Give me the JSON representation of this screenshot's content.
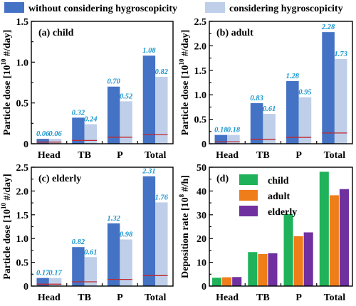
{
  "colors": {
    "without": "#4472c4",
    "with": "#bfcfea",
    "redline": "#c0282d",
    "value_label": "#1a96cf",
    "child": "#1fb25a",
    "adult": "#ef7d1a",
    "elderly": "#7030a0"
  },
  "legend": {
    "without": "without considering hygroscopicity",
    "with": "considering hygroscopicity"
  },
  "chart_data": [
    {
      "type": "bar",
      "panel": "(a) child",
      "ylabel": "Particle dose [10¹⁰ #/day]",
      "ylabel_base": "Particle dose [10",
      "ylabel_exp": "10",
      "ylabel_tail": " #/day]",
      "categories": [
        "Head",
        "TB",
        "P",
        "Total"
      ],
      "ylim": [
        0,
        1.5
      ],
      "yticks": [
        0,
        0.5,
        1.0,
        1.5
      ],
      "ytick_labels": [
        "0",
        "0.5",
        "1.0",
        "1.5"
      ],
      "series": [
        {
          "name": "without considering hygroscopicity",
          "values": [
            0.06,
            0.32,
            0.7,
            1.08
          ]
        },
        {
          "name": "considering hygroscopicity",
          "values": [
            0.06,
            0.24,
            0.52,
            0.82
          ]
        }
      ],
      "value_labels": [
        [
          "0.06",
          "0.32",
          "0.70",
          "1.08"
        ],
        [
          "0.06",
          "0.24",
          "0.52",
          "0.82"
        ]
      ],
      "red_line_values": [
        0.02,
        0.04,
        0.08,
        0.11
      ]
    },
    {
      "type": "bar",
      "panel": "(b) adult",
      "ylabel": "Particle dose [10¹⁰ #/day]",
      "ylabel_base": "Particle dose [10",
      "ylabel_exp": "10",
      "ylabel_tail": " #/day]",
      "categories": [
        "Head",
        "TB",
        "P",
        "Total"
      ],
      "ylim": [
        0,
        2.5
      ],
      "yticks": [
        0,
        0.5,
        1.0,
        1.5,
        2.0,
        2.5
      ],
      "ytick_labels": [
        "0",
        "0.5",
        "1.0",
        "1.5",
        "2.0",
        "2.5"
      ],
      "series": [
        {
          "name": "without considering hygroscopicity",
          "values": [
            0.18,
            0.83,
            1.28,
            2.28
          ]
        },
        {
          "name": "considering hygroscopicity",
          "values": [
            0.18,
            0.61,
            0.95,
            1.73
          ]
        }
      ],
      "value_labels": [
        [
          "0.18",
          "0.83",
          "1.28",
          "2.28"
        ],
        [
          "0.18",
          "0.61",
          "0.95",
          "1.73"
        ]
      ],
      "red_line_values": [
        0.04,
        0.09,
        0.13,
        0.22
      ]
    },
    {
      "type": "bar",
      "panel": "(c) elderly",
      "ylabel": "Particle dose [10¹⁰ #/day]",
      "ylabel_base": "Particle dose [10",
      "ylabel_exp": "10",
      "ylabel_tail": " #/day]",
      "categories": [
        "Head",
        "TB",
        "P",
        "Total"
      ],
      "ylim": [
        0,
        2.5
      ],
      "yticks": [
        0,
        0.5,
        1.0,
        1.5,
        2.0,
        2.5
      ],
      "ytick_labels": [
        "0",
        "0.5",
        "1.0",
        "1.5",
        "2.0",
        "2.5"
      ],
      "series": [
        {
          "name": "without considering hygroscopicity",
          "values": [
            0.17,
            0.82,
            1.32,
            2.31
          ]
        },
        {
          "name": "considering hygroscopicity",
          "values": [
            0.17,
            0.61,
            0.98,
            1.76
          ]
        }
      ],
      "value_labels": [
        [
          "0.17",
          "0.82",
          "1.32",
          "2.31"
        ],
        [
          "0.17",
          "0.61",
          "0.98",
          "1.76"
        ]
      ],
      "red_line_values": [
        0.04,
        0.09,
        0.14,
        0.22
      ]
    },
    {
      "type": "bar",
      "panel": "(d)",
      "ylabel": "Deposition rate [10⁸ #/h]",
      "ylabel_base": "Deposition rate [10",
      "ylabel_exp": "8",
      "ylabel_tail": " #/h]",
      "categories": [
        "Head",
        "TB",
        "P",
        "Total"
      ],
      "ylim": [
        0,
        50
      ],
      "yticks": [
        0,
        10,
        20,
        30,
        40,
        50
      ],
      "ytick_labels": [
        "0",
        "10",
        "20",
        "30",
        "40",
        "50"
      ],
      "series": [
        {
          "name": "child",
          "values": [
            3.5,
            14.3,
            30.3,
            48.1
          ]
        },
        {
          "name": "adult",
          "values": [
            3.7,
            13.5,
            21.0,
            38.2
          ]
        },
        {
          "name": "elderly",
          "values": [
            3.8,
            13.8,
            22.6,
            40.8
          ]
        }
      ],
      "legend_placement": "top-left"
    }
  ]
}
